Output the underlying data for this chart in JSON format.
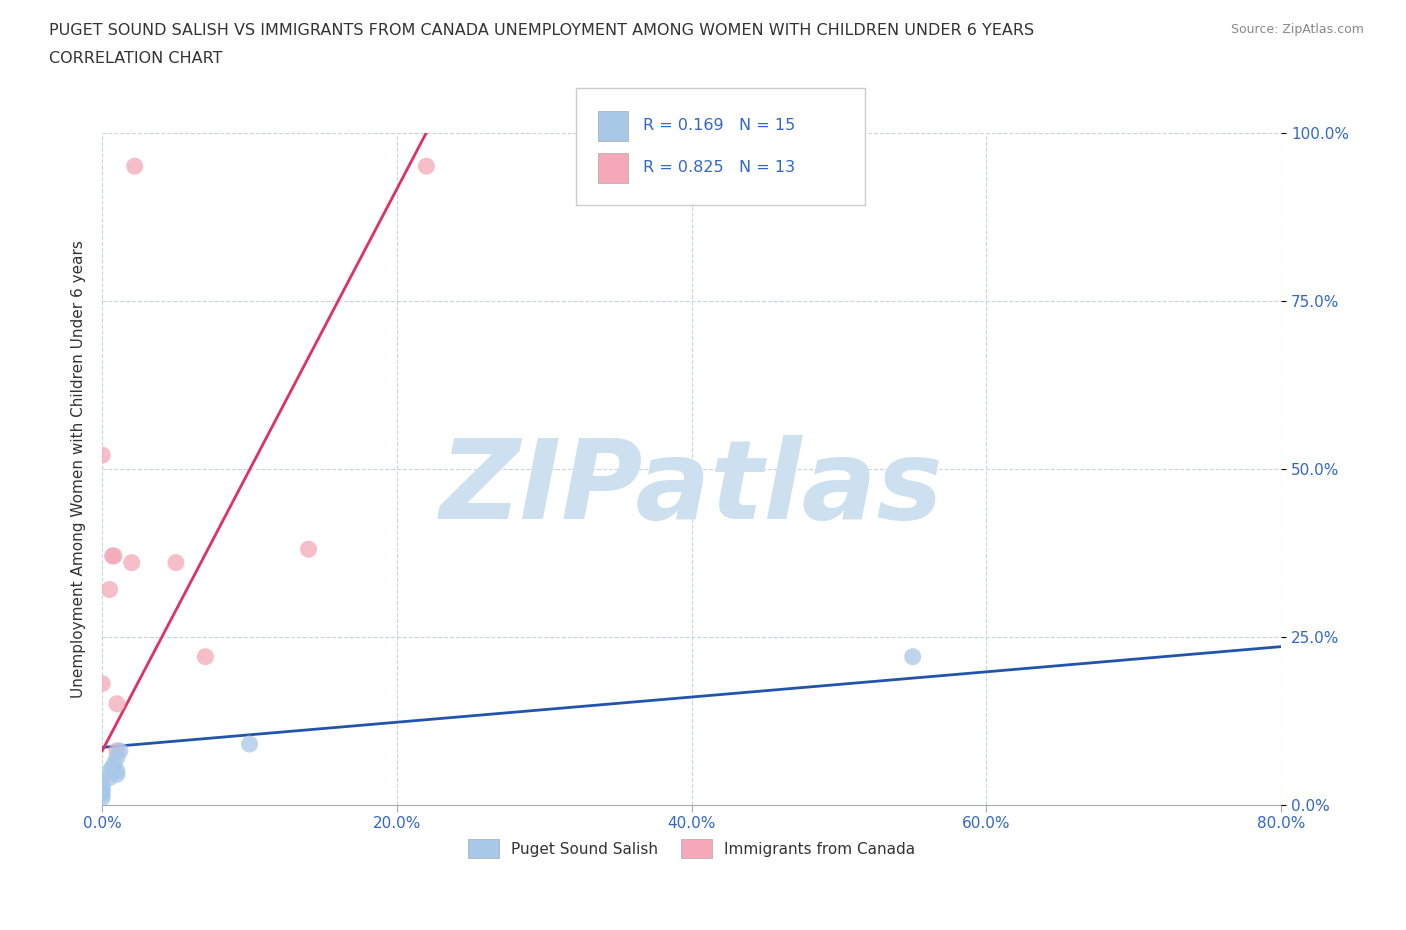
{
  "title_line1": "PUGET SOUND SALISH VS IMMIGRANTS FROM CANADA UNEMPLOYMENT AMONG WOMEN WITH CHILDREN UNDER 6 YEARS",
  "title_line2": "CORRELATION CHART",
  "source": "Source: ZipAtlas.com",
  "ylabel": "Unemployment Among Women with Children Under 6 years",
  "xlim": [
    0.0,
    0.8
  ],
  "ylim": [
    0.0,
    1.0
  ],
  "xticks": [
    0.0,
    0.2,
    0.4,
    0.6,
    0.8
  ],
  "yticks": [
    0.0,
    0.25,
    0.5,
    0.75,
    1.0
  ],
  "xtick_labels": [
    "0.0%",
    "20.0%",
    "40.0%",
    "60.0%",
    "80.0%"
  ],
  "ytick_labels": [
    "0.0%",
    "25.0%",
    "50.0%",
    "75.0%",
    "100.0%"
  ],
  "blue_scatter_x": [
    0.0,
    0.0,
    0.0,
    0.0,
    0.0,
    0.005,
    0.005,
    0.007,
    0.008,
    0.01,
    0.01,
    0.01,
    0.012,
    0.1,
    0.55
  ],
  "blue_scatter_y": [
    0.01,
    0.015,
    0.02,
    0.025,
    0.03,
    0.04,
    0.05,
    0.055,
    0.06,
    0.045,
    0.05,
    0.07,
    0.08,
    0.09,
    0.22
  ],
  "pink_scatter_x": [
    0.0,
    0.0,
    0.005,
    0.007,
    0.008,
    0.01,
    0.01,
    0.02,
    0.022,
    0.05,
    0.07,
    0.14,
    0.22
  ],
  "pink_scatter_y": [
    0.52,
    0.18,
    0.32,
    0.37,
    0.37,
    0.08,
    0.15,
    0.36,
    0.95,
    0.36,
    0.22,
    0.38,
    0.95
  ],
  "blue_line_x0": 0.0,
  "blue_line_y0": 0.085,
  "blue_line_x1": 0.8,
  "blue_line_y1": 0.235,
  "pink_line_x0": 0.0,
  "pink_line_y0": 0.08,
  "pink_line_x1": 0.22,
  "pink_line_y1": 1.0,
  "blue_R": 0.169,
  "blue_N": 15,
  "pink_R": 0.825,
  "pink_N": 13,
  "blue_color": "#a8c8e8",
  "pink_color": "#f4a8b8",
  "blue_line_color": "#2255aa",
  "pink_line_color": "#e03060",
  "watermark": "ZIPatlas",
  "watermark_color": "#cce0f0",
  "background_color": "#ffffff",
  "grid_color": "#c8d4e0",
  "label_color": "#3366cc",
  "title_color": "#333333",
  "legend_label1": "Puget Sound Salish",
  "legend_label2": "Immigrants from Canada"
}
